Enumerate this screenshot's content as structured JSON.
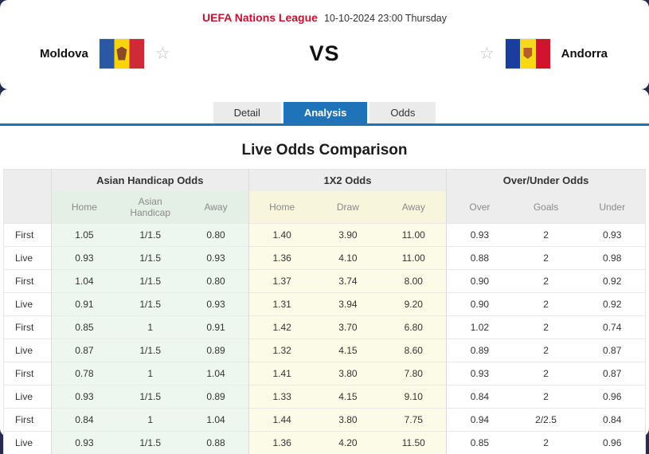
{
  "header": {
    "league": "UEFA Nations League",
    "datetime": "10-10-2024 23:00 Thursday",
    "home_team": "Moldova",
    "away_team": "Andorra",
    "vs": "VS"
  },
  "icons": {
    "star": "☆"
  },
  "colors": {
    "accent": "#1f73b8",
    "league-red": "#c8102e",
    "navy": "#262b52",
    "green-bg": "#edf6ef",
    "yellow-bg": "#fcfbe8"
  },
  "tabs": [
    {
      "label": "Detail",
      "active": false
    },
    {
      "label": "Analysis",
      "active": true
    },
    {
      "label": "Odds",
      "active": false
    }
  ],
  "section_title": "Live Odds Comparison",
  "odds_table": {
    "groups": [
      "Asian Handicap Odds",
      "1X2 Odds",
      "Over/Under Odds"
    ],
    "subheaders": [
      "Home",
      "Asian Handicap",
      "Away",
      "Home",
      "Draw",
      "Away",
      "Over",
      "Goals",
      "Under"
    ],
    "rows": [
      [
        "First",
        "1.05",
        "1/1.5",
        "0.80",
        "1.40",
        "3.90",
        "11.00",
        "0.93",
        "2",
        "0.93"
      ],
      [
        "Live",
        "0.93",
        "1/1.5",
        "0.93",
        "1.36",
        "4.10",
        "11.00",
        "0.88",
        "2",
        "0.98"
      ],
      [
        "First",
        "1.04",
        "1/1.5",
        "0.80",
        "1.37",
        "3.74",
        "8.00",
        "0.90",
        "2",
        "0.92"
      ],
      [
        "Live",
        "0.91",
        "1/1.5",
        "0.93",
        "1.31",
        "3.94",
        "9.20",
        "0.90",
        "2",
        "0.92"
      ],
      [
        "First",
        "0.85",
        "1",
        "0.91",
        "1.42",
        "3.70",
        "6.80",
        "1.02",
        "2",
        "0.74"
      ],
      [
        "Live",
        "0.87",
        "1/1.5",
        "0.89",
        "1.32",
        "4.15",
        "8.60",
        "0.89",
        "2",
        "0.87"
      ],
      [
        "First",
        "0.78",
        "1",
        "1.04",
        "1.41",
        "3.80",
        "7.80",
        "0.93",
        "2",
        "0.87"
      ],
      [
        "Live",
        "0.93",
        "1/1.5",
        "0.89",
        "1.33",
        "4.15",
        "9.10",
        "0.84",
        "2",
        "0.96"
      ],
      [
        "First",
        "0.84",
        "1",
        "1.04",
        "1.44",
        "3.80",
        "7.75",
        "0.94",
        "2/2.5",
        "0.84"
      ],
      [
        "Live",
        "0.93",
        "1/1.5",
        "0.88",
        "1.36",
        "4.20",
        "11.50",
        "0.85",
        "2",
        "0.96"
      ]
    ]
  }
}
